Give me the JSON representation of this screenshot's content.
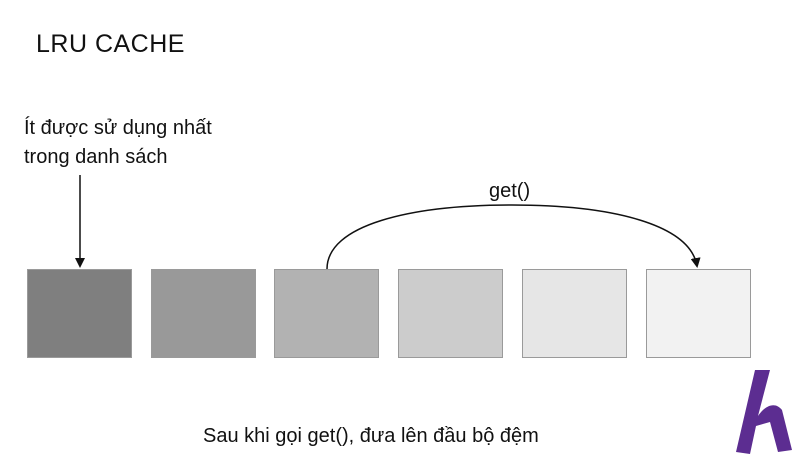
{
  "title": "LRU CACHE",
  "lru_label": {
    "line1": "Ít được sử dụng nhất",
    "line2": "trong danh sách"
  },
  "get_label": "get()",
  "caption": "Sau khi gọi get(), đưa lên đầu bộ đệm",
  "blocks": [
    {
      "color": "#7f7f7f"
    },
    {
      "color": "#999999"
    },
    {
      "color": "#b2b2b2"
    },
    {
      "color": "#cccccc"
    },
    {
      "color": "#e6e6e6"
    },
    {
      "color": "#f2f2f2"
    }
  ],
  "logo": {
    "icon": "h-logo-icon",
    "color": "#5c2d91"
  }
}
